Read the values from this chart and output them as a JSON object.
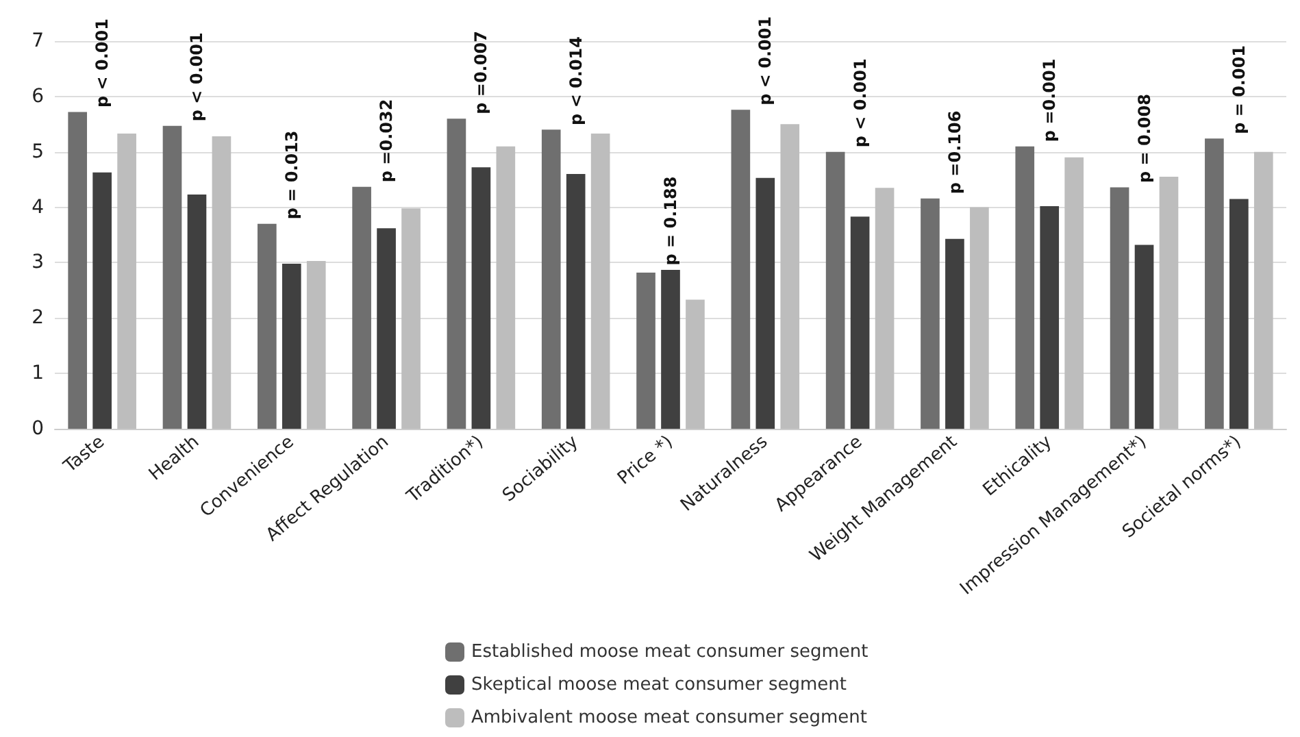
{
  "chart_data": {
    "type": "bar",
    "categories": [
      "Taste",
      "Health",
      "Convenience",
      "Affect Regulation",
      "Tradition*)",
      "Sociability",
      "Price *)",
      "Naturalness",
      "Appearance",
      "Weight Management",
      "Ethicality",
      "Impression Management*)",
      "Societal norms*)"
    ],
    "series": [
      {
        "name": "Established moose meat consumer segment",
        "color": "#6f6f6f",
        "values": [
          5.72,
          5.47,
          3.7,
          4.37,
          5.6,
          5.4,
          2.82,
          5.76,
          5.0,
          4.16,
          5.1,
          4.36,
          5.24
        ]
      },
      {
        "name": "Skeptical moose meat consumer segment",
        "color": "#404040",
        "values": [
          4.63,
          4.23,
          2.98,
          3.62,
          4.72,
          4.6,
          2.87,
          4.53,
          3.83,
          3.43,
          4.02,
          3.32,
          4.15
        ]
      },
      {
        "name": "Ambivalent moose meat consumer segment",
        "color": "#bdbdbd",
        "values": [
          5.33,
          5.28,
          3.03,
          3.98,
          5.1,
          5.33,
          2.33,
          5.5,
          4.35,
          4.0,
          4.9,
          4.55,
          5.0
        ]
      }
    ],
    "annotations": [
      "p < 0.001",
      "p < 0.001",
      "p = 0.013",
      "p =0.032",
      "p =0.007",
      "p < 0.014",
      "p = 0.188",
      "p < 0.001",
      "p < 0.001",
      "p =0.106",
      "p =0.001",
      "p = 0.008",
      "p = 0.001"
    ],
    "ylim": [
      0,
      7
    ],
    "yticks": [
      0,
      1,
      2,
      3,
      4,
      5,
      6,
      7
    ],
    "grid": "y",
    "legend": "bottom"
  }
}
